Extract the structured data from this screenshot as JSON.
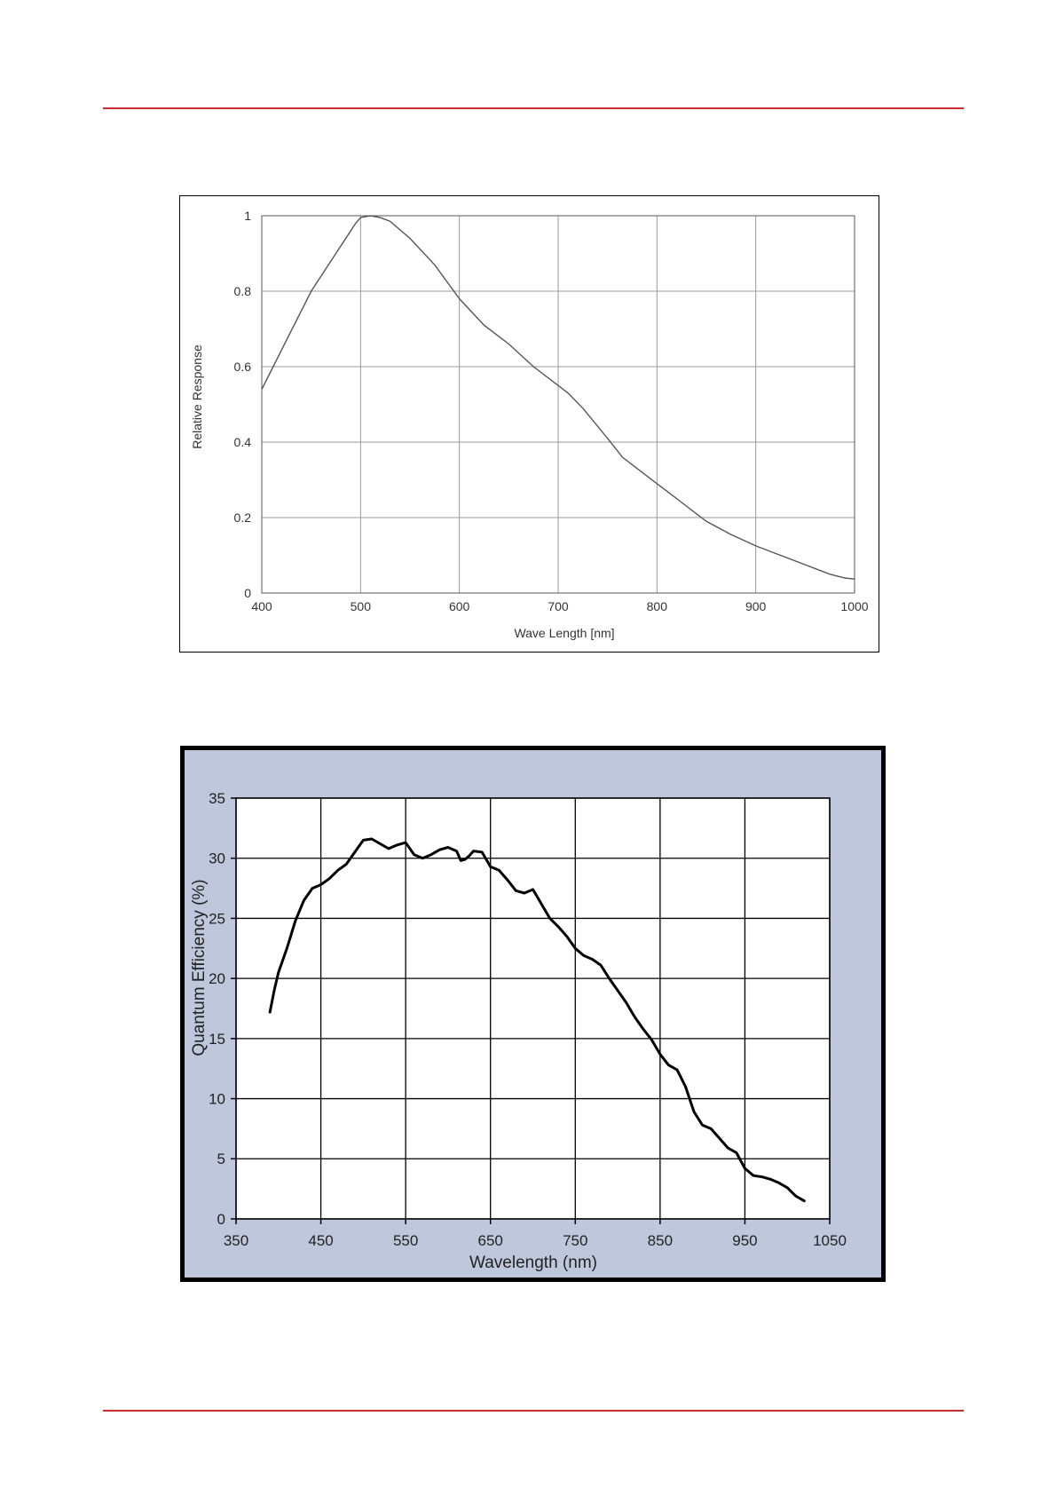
{
  "colors": {
    "rule": "#c8302f",
    "chart2_bg": "#bfc7dd",
    "line1": "#555555",
    "line2": "#000000"
  },
  "chart_data": [
    {
      "type": "line",
      "xlabel": "Wave Length [nm]",
      "ylabel": "Relative Response",
      "xlim": [
        400,
        1000
      ],
      "ylim": [
        0,
        1
      ],
      "xticks": [
        400,
        500,
        600,
        700,
        800,
        900,
        1000
      ],
      "yticks": [
        0,
        0.2,
        0.4,
        0.6,
        0.8,
        1
      ],
      "ytick_labels": [
        "0",
        "0.2",
        "0.4",
        "0.6",
        "0.8",
        "1"
      ],
      "grid": true,
      "series": [
        {
          "x": [
            400,
            425,
            450,
            475,
            495,
            500,
            510,
            520,
            530,
            550,
            575,
            600,
            625,
            650,
            675,
            700,
            710,
            725,
            750,
            765,
            800,
            825,
            850,
            875,
            900,
            925,
            950,
            975,
            990,
            1000
          ],
          "y": [
            0.54,
            0.67,
            0.8,
            0.9,
            0.98,
            0.995,
            1.0,
            0.995,
            0.985,
            0.94,
            0.87,
            0.78,
            0.71,
            0.66,
            0.6,
            0.55,
            0.53,
            0.49,
            0.41,
            0.36,
            0.29,
            0.24,
            0.19,
            0.155,
            0.125,
            0.1,
            0.075,
            0.05,
            0.04,
            0.037
          ]
        }
      ]
    },
    {
      "type": "line",
      "xlabel": "Wavelength (nm)",
      "ylabel": "Quantum Efficiency (%)",
      "xlim": [
        350,
        1050
      ],
      "ylim": [
        0,
        35
      ],
      "xticks": [
        350,
        450,
        550,
        650,
        750,
        850,
        950,
        1050
      ],
      "yticks": [
        0,
        5,
        10,
        15,
        20,
        25,
        30,
        35
      ],
      "ytick_labels": [
        "0",
        "5",
        "10",
        "15",
        "20",
        "25",
        "30",
        "35"
      ],
      "grid": true,
      "series": [
        {
          "x": [
            390,
            395,
            400,
            410,
            420,
            430,
            440,
            450,
            460,
            470,
            480,
            490,
            500,
            510,
            520,
            530,
            540,
            550,
            560,
            570,
            580,
            590,
            600,
            610,
            615,
            620,
            625,
            630,
            640,
            650,
            660,
            670,
            680,
            690,
            700,
            710,
            720,
            730,
            740,
            750,
            760,
            770,
            780,
            790,
            800,
            810,
            820,
            830,
            840,
            850,
            860,
            870,
            880,
            890,
            900,
            910,
            920,
            930,
            940,
            950,
            960,
            970,
            980,
            990,
            1000,
            1010,
            1020
          ],
          "y": [
            17.2,
            19.0,
            20.5,
            22.5,
            24.8,
            26.5,
            27.5,
            27.8,
            28.3,
            29.0,
            29.5,
            30.5,
            31.5,
            31.6,
            31.2,
            30.8,
            31.1,
            31.3,
            30.3,
            30.0,
            30.3,
            30.7,
            30.9,
            30.6,
            29.8,
            29.9,
            30.2,
            30.6,
            30.5,
            29.3,
            29.0,
            28.2,
            27.3,
            27.1,
            27.4,
            26.2,
            25.0,
            24.3,
            23.5,
            22.5,
            21.9,
            21.6,
            21.1,
            20.0,
            19.0,
            18.0,
            16.8,
            15.8,
            14.9,
            13.7,
            12.8,
            12.4,
            11.0,
            8.9,
            7.8,
            7.5,
            6.7,
            5.9,
            5.5,
            4.2,
            3.6,
            3.5,
            3.3,
            3.0,
            2.6,
            1.9,
            1.5
          ]
        }
      ]
    }
  ]
}
